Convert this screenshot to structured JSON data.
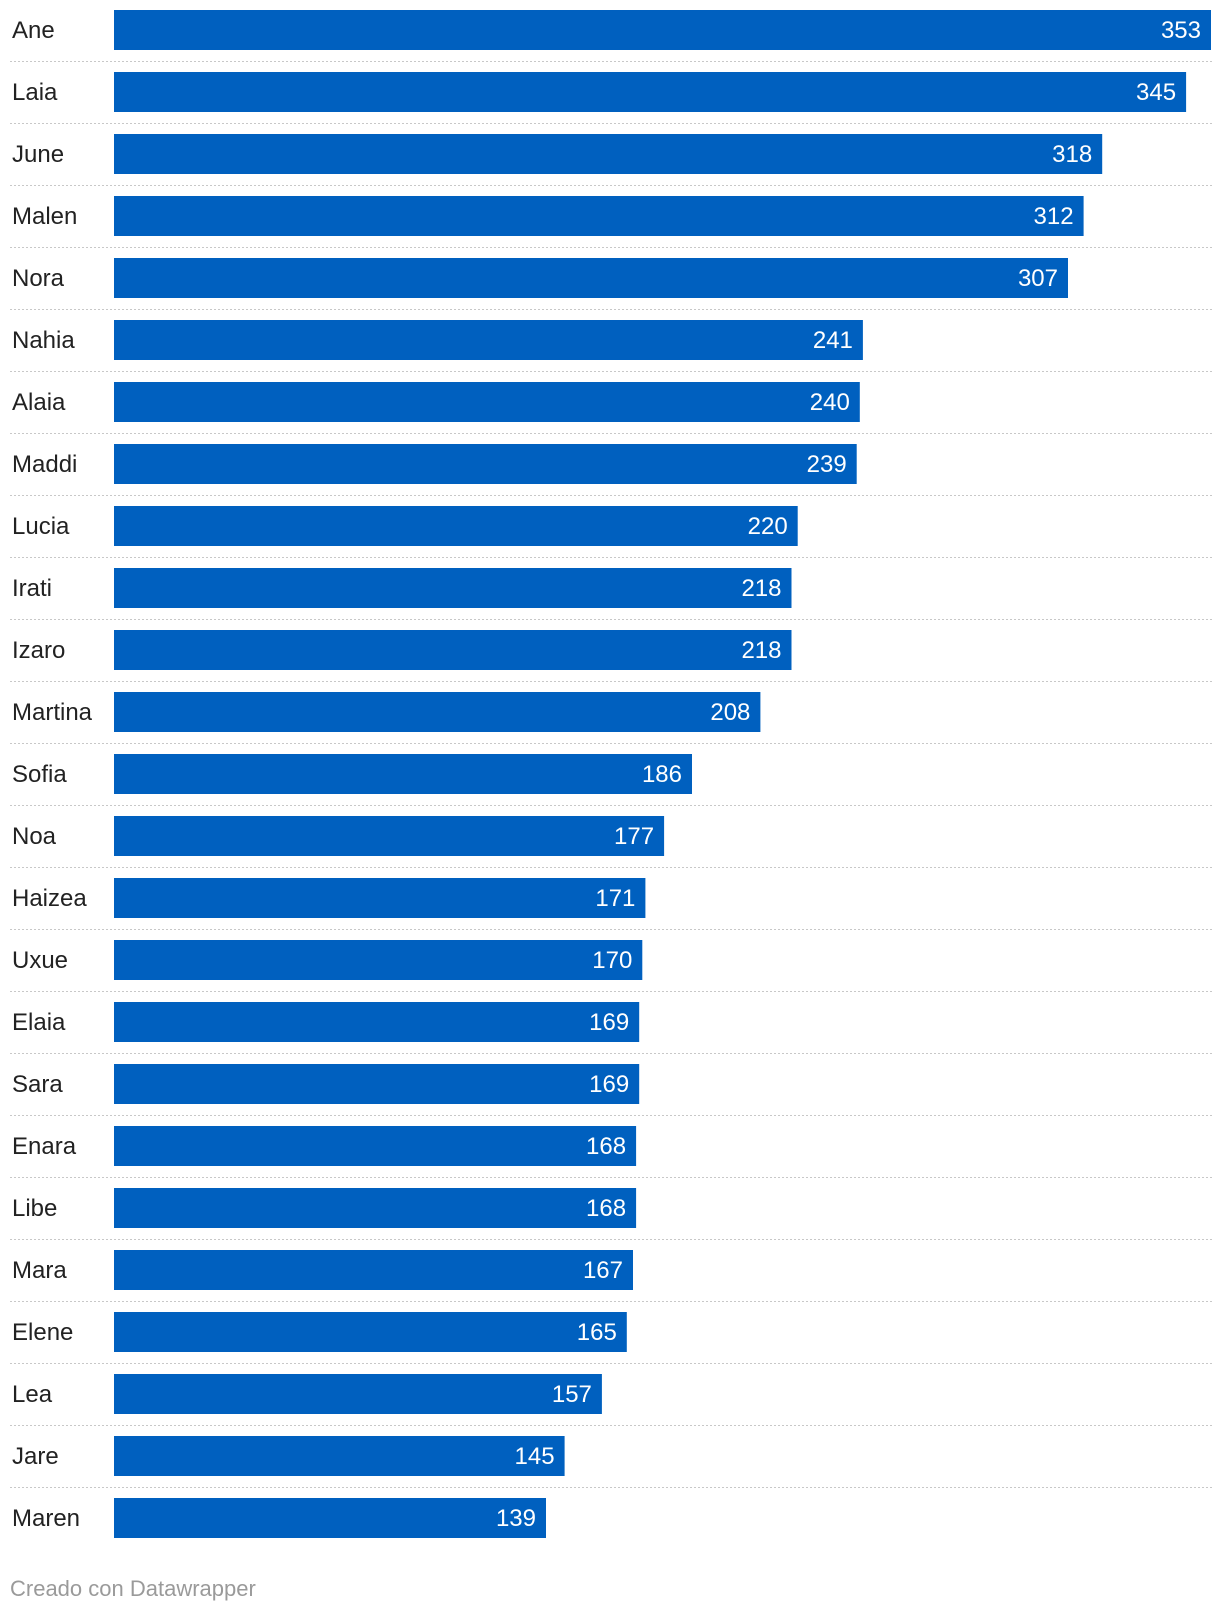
{
  "chart_data": {
    "type": "bar",
    "orientation": "horizontal",
    "title": "",
    "xlabel": "",
    "ylabel": "",
    "xlim": [
      0,
      353
    ],
    "grid": false,
    "bar_color": "#0060BF",
    "categories": [
      "Ane",
      "Laia",
      "June",
      "Malen",
      "Nora",
      "Nahia",
      "Alaia",
      "Maddi",
      "Lucia",
      "Irati",
      "Izaro",
      "Martina",
      "Sofia",
      "Noa",
      "Haizea",
      "Uxue",
      "Elaia",
      "Sara",
      "Enara",
      "Libe",
      "Mara",
      "Elene",
      "Lea",
      "Jare",
      "Maren"
    ],
    "values": [
      353,
      345,
      318,
      312,
      307,
      241,
      240,
      239,
      220,
      218,
      218,
      208,
      186,
      177,
      171,
      170,
      169,
      169,
      168,
      168,
      167,
      165,
      157,
      145,
      139
    ]
  },
  "footer": {
    "credit": "Creado con Datawrapper"
  }
}
